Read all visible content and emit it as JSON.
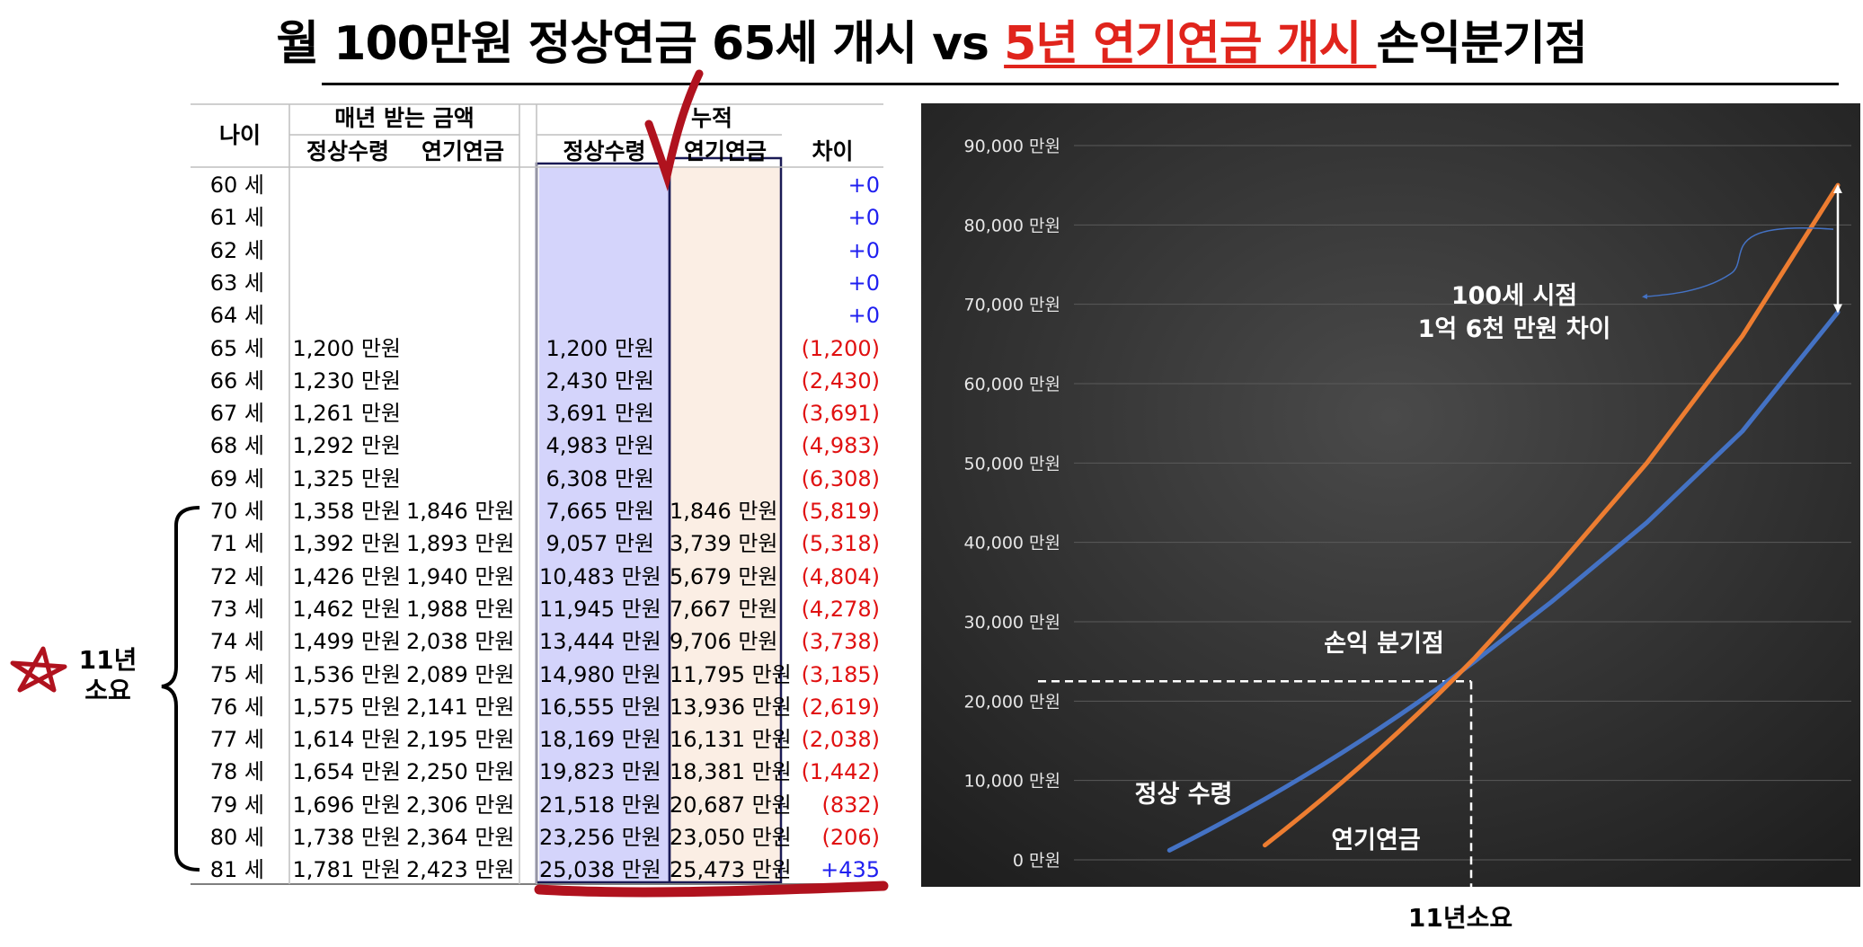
{
  "title": {
    "part1": "월 100만원 정상연금 65세 개시 vs ",
    "highlight": "5년 연기연금 개시 ",
    "part2": "손익분기점"
  },
  "table": {
    "headers": {
      "age": "나이",
      "annual_group": "매년 받는 금액",
      "cumulative_group": "누적",
      "normal": "정상수령",
      "deferred": "연기연금",
      "normal2": "정상수령",
      "deferred2": "연기연금",
      "diff": "차이"
    },
    "rows": [
      {
        "age": "60 세",
        "a_normal": "",
        "a_deferred": "",
        "c_normal": "",
        "c_deferred": "",
        "diff": "+0",
        "diff_color": "blue"
      },
      {
        "age": "61 세",
        "a_normal": "",
        "a_deferred": "",
        "c_normal": "",
        "c_deferred": "",
        "diff": "+0",
        "diff_color": "blue"
      },
      {
        "age": "62 세",
        "a_normal": "",
        "a_deferred": "",
        "c_normal": "",
        "c_deferred": "",
        "diff": "+0",
        "diff_color": "blue"
      },
      {
        "age": "63 세",
        "a_normal": "",
        "a_deferred": "",
        "c_normal": "",
        "c_deferred": "",
        "diff": "+0",
        "diff_color": "blue"
      },
      {
        "age": "64 세",
        "a_normal": "",
        "a_deferred": "",
        "c_normal": "",
        "c_deferred": "",
        "diff": "+0",
        "diff_color": "blue"
      },
      {
        "age": "65 세",
        "a_normal": "1,200 만원",
        "a_deferred": "",
        "c_normal": "1,200 만원",
        "c_deferred": "",
        "diff": "(1,200)",
        "diff_color": "red"
      },
      {
        "age": "66 세",
        "a_normal": "1,230 만원",
        "a_deferred": "",
        "c_normal": "2,430 만원",
        "c_deferred": "",
        "diff": "(2,430)",
        "diff_color": "red"
      },
      {
        "age": "67 세",
        "a_normal": "1,261 만원",
        "a_deferred": "",
        "c_normal": "3,691 만원",
        "c_deferred": "",
        "diff": "(3,691)",
        "diff_color": "red"
      },
      {
        "age": "68 세",
        "a_normal": "1,292 만원",
        "a_deferred": "",
        "c_normal": "4,983 만원",
        "c_deferred": "",
        "diff": "(4,983)",
        "diff_color": "red"
      },
      {
        "age": "69 세",
        "a_normal": "1,325 만원",
        "a_deferred": "",
        "c_normal": "6,308 만원",
        "c_deferred": "",
        "diff": "(6,308)",
        "diff_color": "red"
      },
      {
        "age": "70 세",
        "a_normal": "1,358 만원",
        "a_deferred": "1,846 만원",
        "c_normal": "7,665 만원",
        "c_deferred": "1,846 만원",
        "diff": "(5,819)",
        "diff_color": "red"
      },
      {
        "age": "71 세",
        "a_normal": "1,392 만원",
        "a_deferred": "1,893 만원",
        "c_normal": "9,057 만원",
        "c_deferred": "3,739 만원",
        "diff": "(5,318)",
        "diff_color": "red"
      },
      {
        "age": "72 세",
        "a_normal": "1,426 만원",
        "a_deferred": "1,940 만원",
        "c_normal": "10,483 만원",
        "c_deferred": "5,679 만원",
        "diff": "(4,804)",
        "diff_color": "red"
      },
      {
        "age": "73 세",
        "a_normal": "1,462 만원",
        "a_deferred": "1,988 만원",
        "c_normal": "11,945 만원",
        "c_deferred": "7,667 만원",
        "diff": "(4,278)",
        "diff_color": "red"
      },
      {
        "age": "74 세",
        "a_normal": "1,499 만원",
        "a_deferred": "2,038 만원",
        "c_normal": "13,444 만원",
        "c_deferred": "9,706 만원",
        "diff": "(3,738)",
        "diff_color": "red"
      },
      {
        "age": "75 세",
        "a_normal": "1,536 만원",
        "a_deferred": "2,089 만원",
        "c_normal": "14,980 만원",
        "c_deferred": "11,795 만원",
        "diff": "(3,185)",
        "diff_color": "red"
      },
      {
        "age": "76 세",
        "a_normal": "1,575 만원",
        "a_deferred": "2,141 만원",
        "c_normal": "16,555 만원",
        "c_deferred": "13,936 만원",
        "diff": "(2,619)",
        "diff_color": "red"
      },
      {
        "age": "77 세",
        "a_normal": "1,614 만원",
        "a_deferred": "2,195 만원",
        "c_normal": "18,169 만원",
        "c_deferred": "16,131 만원",
        "diff": "(2,038)",
        "diff_color": "red"
      },
      {
        "age": "78 세",
        "a_normal": "1,654 만원",
        "a_deferred": "2,250 만원",
        "c_normal": "19,823 만원",
        "c_deferred": "18,381 만원",
        "diff": "(1,442)",
        "diff_color": "red"
      },
      {
        "age": "79 세",
        "a_normal": "1,696 만원",
        "a_deferred": "2,306 만원",
        "c_normal": "21,518 만원",
        "c_deferred": "20,687 만원",
        "diff": "(832)",
        "diff_color": "red"
      },
      {
        "age": "80 세",
        "a_normal": "1,738 만원",
        "a_deferred": "2,364 만원",
        "c_normal": "23,256 만원",
        "c_deferred": "23,050 만원",
        "diff": "(206)",
        "diff_color": "red"
      },
      {
        "age": "81 세",
        "a_normal": "1,781 만원",
        "a_deferred": "2,423 만원",
        "c_normal": "25,038 만원",
        "c_deferred": "25,473 만원",
        "diff": "+435",
        "diff_color": "blue"
      }
    ]
  },
  "brace_label": {
    "line1": "11년",
    "line2": "소요"
  },
  "colors": {
    "title_highlight": "#e0241c",
    "normal_col": "#d4d4fb",
    "deferred_col": "#fbeee4",
    "ink_red": "#b0121e",
    "chart_bg": "#2f2f2f",
    "normal_line": "#4472c4",
    "deferred_line": "#ed7d31"
  },
  "chart_data": {
    "type": "line",
    "y_ticks": [
      "0 만원",
      "10,000 만원",
      "20,000 만원",
      "30,000 만원",
      "40,000 만원",
      "50,000 만원",
      "60,000 만원",
      "70,000 만원",
      "80,000 만원",
      "90,000 만원"
    ],
    "ylim": [
      0,
      90000
    ],
    "xlim": [
      60,
      100
    ],
    "series": [
      {
        "name": "정상 수령",
        "x": [
          65,
          66,
          67,
          68,
          69,
          70,
          71,
          72,
          73,
          74,
          75,
          76,
          77,
          78,
          79,
          80,
          81,
          85,
          90,
          95,
          100
        ],
        "values": [
          1200,
          2430,
          3691,
          4983,
          6308,
          7665,
          9057,
          10483,
          11945,
          13444,
          14980,
          16555,
          18169,
          19823,
          21518,
          23256,
          25038,
          32500,
          42500,
          54000,
          69000
        ]
      },
      {
        "name": "연기연금",
        "x": [
          70,
          71,
          72,
          73,
          74,
          75,
          76,
          77,
          78,
          79,
          80,
          81,
          85,
          90,
          95,
          100
        ],
        "values": [
          1846,
          3739,
          5679,
          7667,
          9706,
          11795,
          13936,
          16131,
          18381,
          20687,
          23050,
          25473,
          36000,
          50000,
          66000,
          85000
        ]
      }
    ],
    "annotations": {
      "breakeven": "손익 분기점",
      "diff_line1": "100세 시점",
      "diff_line2": "1억 6천 만원 차이",
      "normal_label": "정상 수령",
      "deferred_label": "연기연금"
    },
    "breakeven_point": {
      "x": 80.8,
      "y": 22500
    }
  },
  "under_chart_label": "11년소요"
}
